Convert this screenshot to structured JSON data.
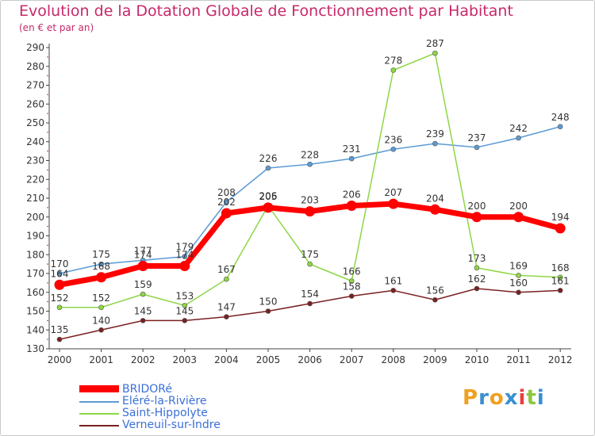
{
  "title": "Evolution de la Dotation Globale de Fonctionnement par Habitant",
  "subtitle": "(en € et par an)",
  "logo": {
    "letters": [
      "P",
      "r",
      "o",
      "x",
      "i",
      "t",
      "i"
    ],
    "colors": [
      "#f0a020",
      "#3a8fd0",
      "#f0a020",
      "#3a8fd0",
      "#e84040",
      "#8cc63f",
      "#3a8fd0"
    ]
  },
  "chart_data": {
    "type": "line",
    "title": "Evolution de la Dotation Globale de Fonctionnement par Habitant",
    "ylabel": "(en € et par an)",
    "xlabel": "",
    "categories": [
      "2000",
      "2001",
      "2002",
      "2003",
      "2004",
      "2005",
      "2006",
      "2007",
      "2008",
      "2009",
      "2010",
      "2011",
      "2012"
    ],
    "ylim": [
      130,
      290
    ],
    "yticks": [
      130,
      140,
      150,
      160,
      170,
      180,
      190,
      200,
      210,
      220,
      230,
      240,
      250,
      260,
      270,
      280,
      290
    ],
    "grid": false,
    "legend_position": "bottom-left",
    "series": [
      {
        "name": "Eléré-la-Rivière",
        "color": "#5b9bd5",
        "values": [
          170,
          175,
          177,
          179,
          208,
          226,
          228,
          231,
          236,
          239,
          237,
          242,
          248
        ]
      },
      {
        "name": "Saint-Hippolyte",
        "color": "#8ed646",
        "values": [
          152,
          152,
          159,
          153,
          167,
          206,
          175,
          166,
          278,
          287,
          173,
          169,
          168
        ]
      },
      {
        "name": "Verneuil-sur-Indre",
        "color": "#7a2020",
        "values": [
          135,
          140,
          145,
          145,
          147,
          150,
          154,
          158,
          161,
          156,
          162,
          160,
          161
        ]
      },
      {
        "name": "BRIDORé",
        "color": "#ff0000",
        "values": [
          164,
          168,
          174,
          174,
          202,
          205,
          203,
          206,
          207,
          204,
          200,
          200,
          194
        ]
      }
    ],
    "legend": [
      "BRIDORé",
      "Eléré-la-Rivière",
      "Saint-Hippolyte",
      "Verneuil-sur-Indre"
    ]
  }
}
